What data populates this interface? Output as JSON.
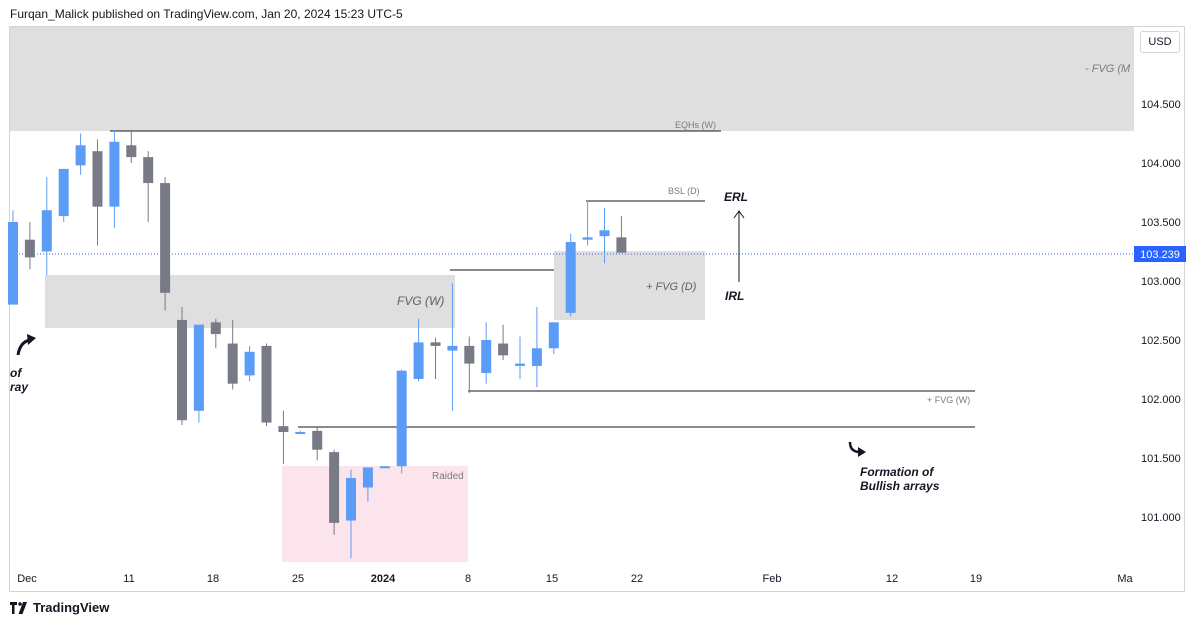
{
  "header": {
    "publish_line": "Furqan_Malick published on TradingView.com, Jan 20, 2024 15:23 UTC-5"
  },
  "footer": {
    "brand": "TradingView"
  },
  "price_axis": {
    "currency": "USD",
    "current_price": "103.239"
  },
  "colors": {
    "bull": "#5b9cf6",
    "bear": "#787b86",
    "zone_gray": "#d9d9d9",
    "zone_pink": "#fce4ec",
    "price_tag": "#2962ff",
    "price_line": "#2962ff",
    "line": "#131722"
  },
  "annotations": {
    "fvg_m": "- FVG (M",
    "eqhs_w": "EQHs (W)",
    "bsl_d": "BSL (D)",
    "erl": "ERL",
    "irl": "IRL",
    "fvg_w": "FVG (W)",
    "plus_fvg_d": "+ FVG (D)",
    "plus_fvg_w": "+ FVG (W)",
    "raided": "Raided",
    "left_note_1": "of",
    "left_note_2": "ray",
    "formation_1": "Formation of",
    "formation_2": "Bullish arrays"
  },
  "chart_data": {
    "type": "candlestick",
    "title": "",
    "y_ticks": [
      "104.500",
      "104.000",
      "103.500",
      "103.000",
      "102.500",
      "102.000",
      "101.500",
      "101.000"
    ],
    "y_tick_values": [
      104.5,
      104.0,
      103.5,
      103.0,
      102.5,
      102.0,
      101.5,
      101.0
    ],
    "x_ticks": [
      "Dec",
      "11",
      "18",
      "25",
      "2024",
      "8",
      "15",
      "22",
      "Feb",
      "12",
      "19",
      "Ma"
    ],
    "ylim": [
      100.55,
      105.15
    ],
    "candles": [
      {
        "o": 102.8,
        "h": 103.6,
        "l": 102.8,
        "c": 103.5
      },
      {
        "o": 103.35,
        "h": 103.5,
        "l": 103.1,
        "c": 103.2
      },
      {
        "o": 103.25,
        "h": 103.88,
        "l": 103.05,
        "c": 103.6
      },
      {
        "o": 103.55,
        "h": 103.95,
        "l": 103.5,
        "c": 103.95
      },
      {
        "o": 103.98,
        "h": 104.25,
        "l": 103.9,
        "c": 104.15
      },
      {
        "o": 104.1,
        "h": 104.2,
        "l": 103.3,
        "c": 103.63
      },
      {
        "o": 103.63,
        "h": 104.28,
        "l": 103.45,
        "c": 104.18
      },
      {
        "o": 104.15,
        "h": 104.28,
        "l": 104.0,
        "c": 104.05
      },
      {
        "o": 104.05,
        "h": 104.1,
        "l": 103.5,
        "c": 103.83
      },
      {
        "o": 103.83,
        "h": 103.88,
        "l": 102.75,
        "c": 102.9
      },
      {
        "o": 102.67,
        "h": 102.78,
        "l": 101.78,
        "c": 101.82
      },
      {
        "o": 101.9,
        "h": 102.62,
        "l": 101.8,
        "c": 102.63
      },
      {
        "o": 102.65,
        "h": 102.68,
        "l": 102.43,
        "c": 102.55
      },
      {
        "o": 102.47,
        "h": 102.67,
        "l": 102.08,
        "c": 102.13
      },
      {
        "o": 102.2,
        "h": 102.45,
        "l": 102.15,
        "c": 102.4
      },
      {
        "o": 102.45,
        "h": 102.47,
        "l": 101.77,
        "c": 101.8
      },
      {
        "o": 101.77,
        "h": 101.9,
        "l": 101.45,
        "c": 101.72
      },
      {
        "o": 101.72,
        "h": 101.73,
        "l": 101.72,
        "c": 101.72
      },
      {
        "o": 101.73,
        "h": 101.77,
        "l": 101.48,
        "c": 101.57
      },
      {
        "o": 101.55,
        "h": 101.57,
        "l": 100.85,
        "c": 100.95
      },
      {
        "o": 100.97,
        "h": 101.4,
        "l": 100.65,
        "c": 101.33
      },
      {
        "o": 101.25,
        "h": 101.42,
        "l": 101.13,
        "c": 101.42
      },
      {
        "o": 101.42,
        "h": 101.43,
        "l": 101.42,
        "c": 101.43
      },
      {
        "o": 101.43,
        "h": 102.25,
        "l": 101.37,
        "c": 102.24
      },
      {
        "o": 102.17,
        "h": 102.68,
        "l": 102.15,
        "c": 102.48
      },
      {
        "o": 102.48,
        "h": 102.52,
        "l": 102.17,
        "c": 102.45
      },
      {
        "o": 102.41,
        "h": 102.98,
        "l": 101.9,
        "c": 102.45
      },
      {
        "o": 102.45,
        "h": 102.53,
        "l": 102.05,
        "c": 102.3
      },
      {
        "o": 102.22,
        "h": 102.65,
        "l": 102.13,
        "c": 102.5
      },
      {
        "o": 102.47,
        "h": 102.63,
        "l": 102.33,
        "c": 102.37
      },
      {
        "o": 102.28,
        "h": 102.53,
        "l": 102.17,
        "c": 102.3
      },
      {
        "o": 102.28,
        "h": 102.78,
        "l": 102.1,
        "c": 102.43
      },
      {
        "o": 102.43,
        "h": 102.63,
        "l": 102.38,
        "c": 102.65
      },
      {
        "o": 102.73,
        "h": 103.4,
        "l": 102.7,
        "c": 103.33
      },
      {
        "o": 103.35,
        "h": 103.68,
        "l": 103.3,
        "c": 103.37
      },
      {
        "o": 103.38,
        "h": 103.62,
        "l": 103.15,
        "c": 103.43
      },
      {
        "o": 103.37,
        "h": 103.55,
        "l": 103.24,
        "c": 103.24
      }
    ]
  }
}
